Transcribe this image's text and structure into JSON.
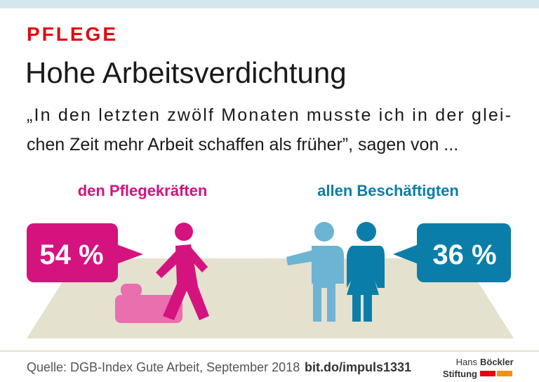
{
  "header": {
    "kicker": "PFLEGE",
    "title": "Hohe Arbeitsverdichtung",
    "quote_lines": [
      "„In den letzten zwölf Monaten musste ich in der glei-",
      "chen Zeit mehr Arbeit schaffen als früher”, sagen von ..."
    ]
  },
  "groups": [
    {
      "label": "den Pflegekräften",
      "value_label": "54 %"
    },
    {
      "label": "allen Beschäftigten",
      "value_label": "36 %"
    }
  ],
  "footer": {
    "source": "Quelle: DGB-Index Gute Arbeit, September 2018",
    "link": "bit.do/impuls1331",
    "logo_line1_light": "Hans",
    "logo_line1_bold": "Böckler",
    "logo_line2": "Stiftung"
  }
}
